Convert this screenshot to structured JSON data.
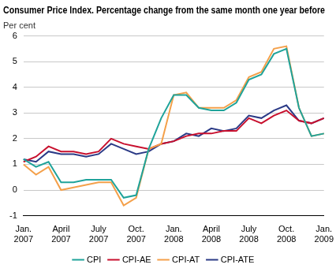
{
  "chart_data": {
    "type": "line",
    "title": "Consumer Price Index. Percentage change from the same month one year before",
    "y_label": "Per cent",
    "categories": [
      "Jan. 2007",
      null,
      null,
      "April 2007",
      null,
      null,
      "July 2007",
      null,
      null,
      "Oct. 2007",
      null,
      null,
      "Jan. 2008",
      null,
      null,
      "April 2008",
      null,
      null,
      "July 2008",
      null,
      null,
      "Oct. 2008",
      null,
      null,
      "Jan. 2009"
    ],
    "series": [
      {
        "name": "CPI-ATE",
        "color": "#2b3a86",
        "values": [
          1.2,
          1.1,
          1.5,
          1.4,
          1.4,
          1.3,
          1.4,
          1.8,
          1.6,
          1.4,
          1.5,
          1.8,
          1.9,
          2.2,
          2.1,
          2.4,
          2.3,
          2.4,
          2.9,
          2.8,
          3.1,
          3.3,
          2.7,
          2.6,
          2.8
        ]
      },
      {
        "name": "CPI-AE",
        "color": "#c8102e",
        "values": [
          1.1,
          1.3,
          1.7,
          1.5,
          1.5,
          1.4,
          1.5,
          2.0,
          1.8,
          1.7,
          1.6,
          1.8,
          1.9,
          2.1,
          2.2,
          2.2,
          2.3,
          2.3,
          2.8,
          2.6,
          2.9,
          3.1,
          2.7,
          2.6,
          2.8
        ]
      },
      {
        "name": "CPI-AT",
        "color": "#f4a04a",
        "values": [
          1.0,
          0.6,
          0.9,
          0.0,
          0.1,
          0.2,
          0.3,
          0.3,
          -0.6,
          -0.3,
          1.6,
          1.8,
          3.7,
          3.8,
          3.2,
          3.2,
          3.2,
          3.5,
          4.4,
          4.6,
          5.5,
          5.6,
          3.2,
          2.1,
          2.2
        ]
      },
      {
        "name": "CPI",
        "color": "#1fa39a",
        "values": [
          1.2,
          0.9,
          1.1,
          0.3,
          0.3,
          0.4,
          0.4,
          0.4,
          -0.3,
          -0.2,
          1.6,
          2.8,
          3.7,
          3.7,
          3.2,
          3.1,
          3.1,
          3.4,
          4.3,
          4.5,
          5.3,
          5.5,
          3.2,
          2.1,
          2.2
        ]
      }
    ],
    "ylim": [
      -1,
      6
    ],
    "yticks": [
      -1,
      0,
      1,
      2,
      3,
      4,
      5,
      6
    ],
    "grid": true,
    "legend": "bottom"
  }
}
